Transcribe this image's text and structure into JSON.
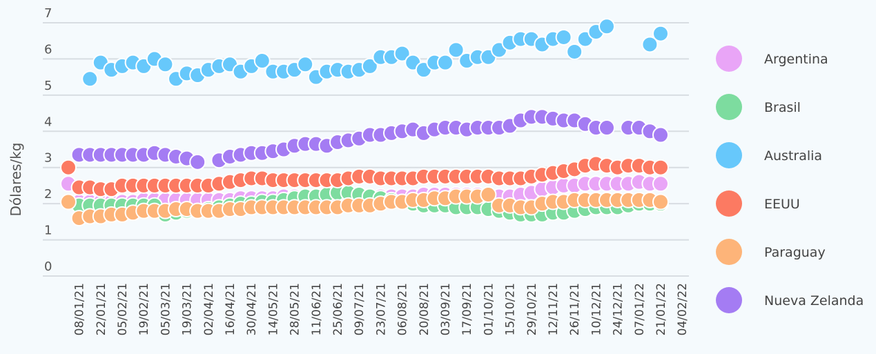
{
  "chart_data": {
    "type": "scatter",
    "y_label": "Dólares/kg",
    "categories": [
      null,
      "08/01/21",
      null,
      "22/01/21",
      null,
      "05/02/21",
      null,
      "19/02/21",
      null,
      "05/03/21",
      null,
      "19/03/21",
      null,
      "02/04/21",
      null,
      "16/04/21",
      null,
      "30/04/21",
      null,
      "14/05/21",
      null,
      "28/05/21",
      null,
      "11/06/21",
      null,
      "25/06/21",
      null,
      "09/07/21",
      null,
      "23/07/21",
      null,
      "06/08/21",
      null,
      "20/08/21",
      null,
      "03/09/21",
      null,
      "17/09/21",
      null,
      "01/10/21",
      null,
      "15/10/21",
      null,
      "29/10/21",
      null,
      "12/11/21",
      null,
      "26/11/21",
      null,
      "10/12/21",
      null,
      "24/12/21",
      null,
      "07/01/22",
      null,
      "21/01/22",
      null,
      "04/02/22"
    ],
    "series": [
      {
        "name": "Argentina",
        "color": "#e9a5f7",
        "values": [
          2.55,
          2.05,
          2.05,
          2.05,
          2.05,
          2.05,
          2.05,
          2.1,
          2.1,
          2.1,
          2.1,
          2.1,
          2.1,
          2.1,
          2.1,
          2.1,
          2.15,
          2.15,
          2.15,
          2.15,
          2.2,
          2.2,
          2.2,
          2.2,
          2.2,
          2.2,
          2.2,
          2.2,
          2.2,
          2.2,
          2.2,
          2.2,
          2.2,
          2.25,
          2.25,
          2.25,
          2.25,
          2.25,
          2.25,
          2.2,
          2.2,
          2.2,
          2.25,
          2.3,
          2.4,
          2.45,
          2.5,
          2.5,
          2.55,
          2.55,
          2.55,
          2.55,
          2.55,
          2.6,
          2.55,
          2.55,
          null,
          null
        ]
      },
      {
        "name": "Brasil",
        "color": "#7ddc9f",
        "values": [
          null,
          1.95,
          1.95,
          1.95,
          1.95,
          1.95,
          1.95,
          1.95,
          1.95,
          1.7,
          1.75,
          1.8,
          1.8,
          1.85,
          1.9,
          1.95,
          2.0,
          2.0,
          2.05,
          2.05,
          2.1,
          2.15,
          2.2,
          2.2,
          2.25,
          2.3,
          2.3,
          2.25,
          2.2,
          2.15,
          2.1,
          2.05,
          2.0,
          1.95,
          1.95,
          1.95,
          1.9,
          1.9,
          1.9,
          1.85,
          1.8,
          1.75,
          1.7,
          1.7,
          1.7,
          1.75,
          1.75,
          1.8,
          1.85,
          1.9,
          1.9,
          1.9,
          1.95,
          2.0,
          2.0,
          2.0,
          null,
          null
        ]
      },
      {
        "name": "Australia",
        "color": "#67c8fb",
        "values": [
          null,
          null,
          5.45,
          5.9,
          5.7,
          5.8,
          5.9,
          5.8,
          6.0,
          5.85,
          5.45,
          5.6,
          5.55,
          5.7,
          5.8,
          5.85,
          5.65,
          5.8,
          5.95,
          5.65,
          5.65,
          5.7,
          5.85,
          5.5,
          5.65,
          5.7,
          5.65,
          5.7,
          5.8,
          6.05,
          6.05,
          6.15,
          5.9,
          5.7,
          5.9,
          5.9,
          6.25,
          5.95,
          6.05,
          6.05,
          6.25,
          6.45,
          6.55,
          6.55,
          6.4,
          6.55,
          6.6,
          6.2,
          6.55,
          6.75,
          6.9,
          null,
          null,
          null,
          6.4,
          6.7,
          null,
          null
        ]
      },
      {
        "name": "EEUU",
        "color": "#fc7a62",
        "values": [
          3.0,
          2.45,
          2.45,
          2.4,
          2.4,
          2.5,
          2.5,
          2.5,
          2.5,
          2.5,
          2.5,
          2.5,
          2.5,
          2.5,
          2.55,
          2.6,
          2.65,
          2.7,
          2.7,
          2.65,
          2.65,
          2.65,
          2.65,
          2.65,
          2.65,
          2.65,
          2.7,
          2.75,
          2.75,
          2.7,
          2.7,
          2.7,
          2.7,
          2.75,
          2.75,
          2.75,
          2.75,
          2.75,
          2.75,
          2.75,
          2.7,
          2.7,
          2.7,
          2.75,
          2.8,
          2.85,
          2.9,
          2.95,
          3.05,
          3.1,
          3.05,
          3.0,
          3.05,
          3.05,
          3.0,
          3.0,
          null,
          null
        ]
      },
      {
        "name": "Paraguay",
        "color": "#fdb479",
        "values": [
          2.05,
          1.6,
          1.65,
          1.65,
          1.7,
          1.7,
          1.75,
          1.8,
          1.8,
          1.8,
          1.85,
          1.85,
          1.8,
          1.8,
          1.8,
          1.85,
          1.85,
          1.9,
          1.9,
          1.9,
          1.9,
          1.9,
          1.9,
          1.9,
          1.9,
          1.9,
          1.95,
          1.95,
          1.95,
          2.0,
          2.05,
          2.05,
          2.1,
          2.1,
          2.15,
          2.15,
          2.2,
          2.2,
          2.2,
          2.25,
          1.95,
          1.95,
          1.9,
          1.9,
          2.0,
          2.05,
          2.05,
          2.1,
          2.1,
          2.1,
          2.1,
          2.1,
          2.1,
          2.1,
          2.1,
          2.05,
          null,
          null
        ]
      },
      {
        "name": "Nueva Zelanda",
        "color": "#a47cf3",
        "values": [
          null,
          3.35,
          3.35,
          3.35,
          3.35,
          3.35,
          3.35,
          3.35,
          3.4,
          3.35,
          3.3,
          3.25,
          3.15,
          null,
          3.2,
          3.3,
          3.35,
          3.4,
          3.4,
          3.45,
          3.5,
          3.6,
          3.65,
          3.65,
          3.6,
          3.7,
          3.75,
          3.8,
          3.9,
          3.9,
          3.95,
          4.0,
          4.05,
          3.95,
          4.05,
          4.1,
          4.1,
          4.05,
          4.1,
          4.1,
          4.1,
          4.15,
          4.3,
          4.4,
          4.4,
          4.35,
          4.3,
          4.3,
          4.2,
          4.1,
          4.1,
          null,
          4.1,
          4.1,
          4.0,
          3.9,
          null,
          null
        ]
      }
    ],
    "ylim": [
      0,
      7
    ],
    "yticks": [
      0,
      1,
      2,
      3,
      4,
      5,
      6,
      7
    ],
    "grid": true,
    "legend": "right"
  }
}
